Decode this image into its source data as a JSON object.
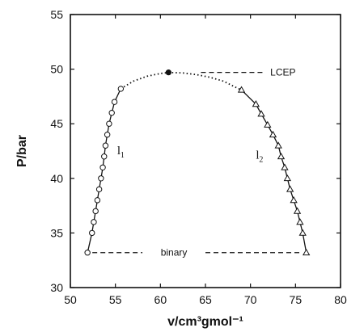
{
  "chart_data": {
    "type": "scatter",
    "xlabel": "v/cm³gmol⁻¹",
    "ylabel": "P/bar",
    "xlim": [
      50,
      80
    ],
    "ylim": [
      30,
      55
    ],
    "x_ticks": [
      50,
      55,
      60,
      65,
      70,
      75,
      80
    ],
    "y_ticks": [
      30,
      35,
      40,
      45,
      50,
      55
    ],
    "x_tick_labels": [
      "50",
      "55",
      "60",
      "65",
      "70",
      "75",
      "80"
    ],
    "y_tick_labels": [
      "30",
      "35",
      "40",
      "45",
      "50",
      "55"
    ],
    "grid": false,
    "annotations": {
      "lcep": "LCEP",
      "binary": "binary",
      "l1_main": "l",
      "l1_sub": "1",
      "l2_main": "l",
      "l2_sub": "2"
    },
    "lcep_point": {
      "x": 60.9,
      "y": 49.7
    },
    "binary_level": 33.2,
    "series": [
      {
        "marker": "circle",
        "points": [
          {
            "x": 51.9,
            "y": 33.2
          },
          {
            "x": 52.4,
            "y": 35.0
          },
          {
            "x": 52.6,
            "y": 36.0
          },
          {
            "x": 52.8,
            "y": 37.0
          },
          {
            "x": 53.0,
            "y": 38.0
          },
          {
            "x": 53.2,
            "y": 39.0
          },
          {
            "x": 53.4,
            "y": 40.0
          },
          {
            "x": 53.6,
            "y": 41.0
          },
          {
            "x": 53.75,
            "y": 42.0
          },
          {
            "x": 53.9,
            "y": 43.0
          },
          {
            "x": 54.1,
            "y": 44.0
          },
          {
            "x": 54.3,
            "y": 45.0
          },
          {
            "x": 54.6,
            "y": 46.0
          },
          {
            "x": 54.9,
            "y": 47.0
          },
          {
            "x": 55.6,
            "y": 48.2
          }
        ]
      },
      {
        "marker": "triangle",
        "points": [
          {
            "x": 69.0,
            "y": 48.1
          },
          {
            "x": 70.6,
            "y": 46.8
          },
          {
            "x": 71.2,
            "y": 45.9
          },
          {
            "x": 71.9,
            "y": 44.9
          },
          {
            "x": 72.5,
            "y": 44.0
          },
          {
            "x": 73.1,
            "y": 43.0
          },
          {
            "x": 73.4,
            "y": 42.0
          },
          {
            "x": 73.8,
            "y": 41.0
          },
          {
            "x": 74.1,
            "y": 40.0
          },
          {
            "x": 74.4,
            "y": 39.0
          },
          {
            "x": 74.8,
            "y": 38.0
          },
          {
            "x": 75.2,
            "y": 37.0
          },
          {
            "x": 75.5,
            "y": 36.0
          },
          {
            "x": 75.8,
            "y": 35.0
          },
          {
            "x": 76.2,
            "y": 33.2
          }
        ]
      }
    ],
    "dotted_dome": [
      {
        "x": 55.6,
        "y": 48.2
      },
      {
        "x": 57.0,
        "y": 48.9
      },
      {
        "x": 58.5,
        "y": 49.35
      },
      {
        "x": 60.0,
        "y": 49.6
      },
      {
        "x": 60.9,
        "y": 49.7
      },
      {
        "x": 62.5,
        "y": 49.65
      },
      {
        "x": 64.0,
        "y": 49.5
      },
      {
        "x": 65.5,
        "y": 49.25
      },
      {
        "x": 67.0,
        "y": 48.9
      },
      {
        "x": 68.2,
        "y": 48.4
      },
      {
        "x": 69.0,
        "y": 48.1
      }
    ]
  }
}
